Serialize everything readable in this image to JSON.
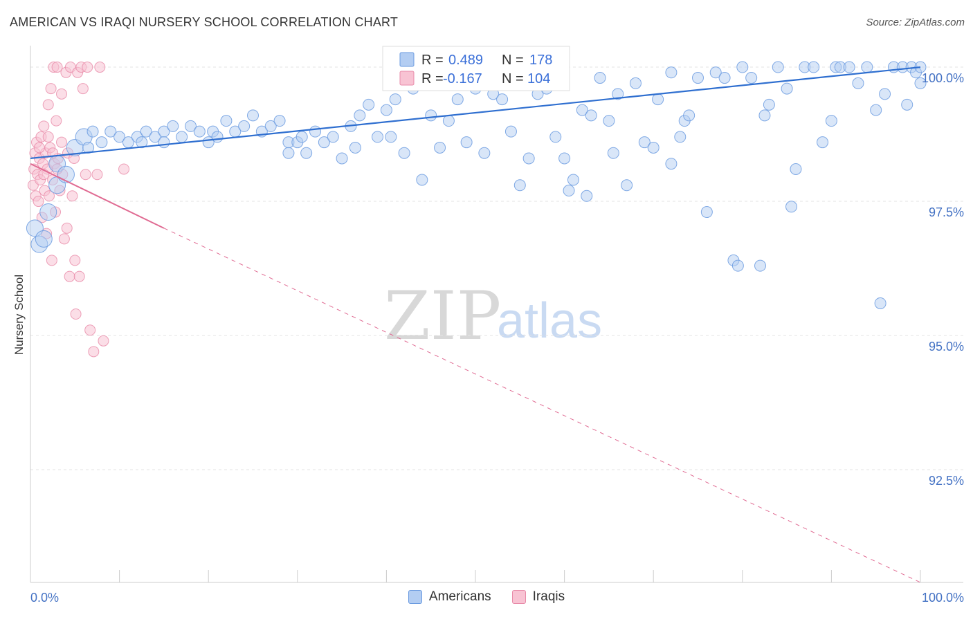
{
  "title": "AMERICAN VS IRAQI NURSERY SCHOOL CORRELATION CHART",
  "source": "Source: ZipAtlas.com",
  "watermark": {
    "zip": "ZIP",
    "atlas": "atlas"
  },
  "colors": {
    "blue": "#6b9be0",
    "blue_fill": "#b3cdf2",
    "blue_line": "#2f6fd0",
    "pink": "#e88aa8",
    "pink_fill": "#f8c3d3",
    "pink_line": "#e06a92",
    "tick": "#4472c4"
  },
  "legend": {
    "r_label": "R =",
    "n_label": "N =",
    "americans": {
      "r": "0.489",
      "n": "178"
    },
    "iraqis": {
      "r": "-0.167",
      "n": "104"
    }
  },
  "bottom_legend": {
    "americans": "Americans",
    "iraqis": "Iraqis"
  },
  "chart_data": {
    "type": "scatter",
    "title": "AMERICAN VS IRAQI NURSERY SCHOOL CORRELATION CHART",
    "xlabel": "",
    "ylabel": "Nursery School",
    "xlim": [
      0,
      100
    ],
    "ylim": [
      90.4,
      100.4
    ],
    "x_tick_labels": [
      "0.0%",
      "100.0%"
    ],
    "y_ticks": [
      92.5,
      95.0,
      97.5,
      100.0
    ],
    "y_tick_labels": [
      "92.5%",
      "95.0%",
      "97.5%",
      "100.0%"
    ],
    "grid": true,
    "series": [
      {
        "name": "Americans",
        "r": 0.489,
        "n": 178,
        "trend": {
          "x": [
            0,
            100
          ],
          "y": [
            98.3,
            100.0
          ]
        },
        "points": [
          [
            0.5,
            97.0
          ],
          [
            1,
            96.7
          ],
          [
            1.5,
            96.8
          ],
          [
            2,
            97.3
          ],
          [
            3,
            97.8
          ],
          [
            3,
            98.2
          ],
          [
            4,
            98.0
          ],
          [
            5,
            98.5
          ],
          [
            6,
            98.7
          ],
          [
            6.5,
            98.5
          ],
          [
            7,
            98.8
          ],
          [
            8,
            98.6
          ],
          [
            9,
            98.8
          ],
          [
            10,
            98.7
          ],
          [
            11,
            98.6
          ],
          [
            12,
            98.7
          ],
          [
            12.5,
            98.6
          ],
          [
            13,
            98.8
          ],
          [
            14,
            98.7
          ],
          [
            15,
            98.8
          ],
          [
            15,
            98.6
          ],
          [
            16,
            98.9
          ],
          [
            17,
            98.7
          ],
          [
            18,
            98.9
          ],
          [
            19,
            98.8
          ],
          [
            20,
            98.6
          ],
          [
            20.5,
            98.8
          ],
          [
            21,
            98.7
          ],
          [
            22,
            99.0
          ],
          [
            23,
            98.8
          ],
          [
            24,
            98.9
          ],
          [
            25,
            99.1
          ],
          [
            26,
            98.8
          ],
          [
            27,
            98.9
          ],
          [
            28,
            99.0
          ],
          [
            29,
            98.6
          ],
          [
            29,
            98.4
          ],
          [
            30,
            98.6
          ],
          [
            30.5,
            98.7
          ],
          [
            31,
            98.4
          ],
          [
            32,
            98.8
          ],
          [
            33,
            98.6
          ],
          [
            34,
            98.7
          ],
          [
            35,
            98.3
          ],
          [
            36,
            98.9
          ],
          [
            36.5,
            98.5
          ],
          [
            37,
            99.1
          ],
          [
            38,
            99.3
          ],
          [
            39,
            98.7
          ],
          [
            40,
            99.2
          ],
          [
            40.5,
            98.7
          ],
          [
            41,
            99.4
          ],
          [
            42,
            98.4
          ],
          [
            43,
            99.6
          ],
          [
            44,
            97.9
          ],
          [
            45,
            99.1
          ],
          [
            46,
            98.5
          ],
          [
            47,
            99.0
          ],
          [
            48,
            99.4
          ],
          [
            49,
            98.6
          ],
          [
            50,
            99.6
          ],
          [
            51,
            98.4
          ],
          [
            52,
            99.5
          ],
          [
            53,
            99.4
          ],
          [
            54,
            98.8
          ],
          [
            55,
            97.8
          ],
          [
            56,
            98.3
          ],
          [
            57,
            99.5
          ],
          [
            58,
            99.6
          ],
          [
            59,
            98.7
          ],
          [
            60,
            98.3
          ],
          [
            60.5,
            97.7
          ],
          [
            61,
            97.9
          ],
          [
            62,
            99.2
          ],
          [
            62.5,
            97.6
          ],
          [
            63,
            99.1
          ],
          [
            64,
            99.8
          ],
          [
            65,
            99.0
          ],
          [
            65.5,
            98.4
          ],
          [
            66,
            99.5
          ],
          [
            67,
            97.8
          ],
          [
            68,
            99.7
          ],
          [
            69,
            98.6
          ],
          [
            70,
            98.5
          ],
          [
            70.5,
            99.4
          ],
          [
            72,
            98.2
          ],
          [
            72,
            99.9
          ],
          [
            73,
            98.7
          ],
          [
            73.5,
            99.0
          ],
          [
            74,
            99.1
          ],
          [
            75,
            99.8
          ],
          [
            76,
            97.3
          ],
          [
            77,
            99.9
          ],
          [
            78,
            99.8
          ],
          [
            79,
            96.4
          ],
          [
            79.5,
            96.3
          ],
          [
            80,
            100.0
          ],
          [
            81,
            99.8
          ],
          [
            82,
            96.3
          ],
          [
            82.5,
            99.1
          ],
          [
            83,
            99.3
          ],
          [
            84,
            100.0
          ],
          [
            85,
            99.6
          ],
          [
            85.5,
            97.4
          ],
          [
            86,
            98.1
          ],
          [
            87,
            100.0
          ],
          [
            88,
            100.0
          ],
          [
            89,
            98.6
          ],
          [
            90,
            99.0
          ],
          [
            90.5,
            100.0
          ],
          [
            91,
            100.0
          ],
          [
            92,
            100.0
          ],
          [
            93,
            99.7
          ],
          [
            94,
            100.0
          ],
          [
            95,
            99.2
          ],
          [
            95.5,
            95.6
          ],
          [
            96,
            99.5
          ],
          [
            97,
            100.0
          ],
          [
            98,
            100.0
          ],
          [
            98.5,
            99.3
          ],
          [
            99,
            100.0
          ],
          [
            99.5,
            99.9
          ],
          [
            100,
            100.0
          ],
          [
            100,
            99.7
          ]
        ]
      },
      {
        "name": "Iraqis",
        "r": -0.167,
        "n": 104,
        "trend": {
          "x": [
            0,
            15
          ],
          "y": [
            98.2,
            97.0
          ],
          "dashed_extension": {
            "x": [
              15,
              100
            ],
            "y": [
              97.0,
              90.4
            ]
          }
        },
        "points": [
          [
            0.3,
            97.8
          ],
          [
            0.4,
            98.1
          ],
          [
            0.5,
            98.4
          ],
          [
            0.6,
            97.6
          ],
          [
            0.7,
            98.6
          ],
          [
            0.8,
            98.0
          ],
          [
            0.9,
            97.5
          ],
          [
            1.0,
            98.3
          ],
          [
            1.1,
            97.9
          ],
          [
            1.2,
            98.7
          ],
          [
            1.3,
            97.2
          ],
          [
            1.4,
            98.2
          ],
          [
            1.5,
            98.9
          ],
          [
            1.6,
            97.7
          ],
          [
            1.7,
            98.4
          ],
          [
            1.8,
            96.9
          ],
          [
            1.9,
            98.1
          ],
          [
            2.0,
            99.3
          ],
          [
            2.1,
            97.6
          ],
          [
            2.2,
            98.5
          ],
          [
            2.3,
            99.6
          ],
          [
            2.4,
            96.4
          ],
          [
            2.5,
            97.9
          ],
          [
            2.6,
            100.0
          ],
          [
            2.7,
            98.2
          ],
          [
            2.8,
            97.3
          ],
          [
            2.9,
            99.0
          ],
          [
            3.0,
            100.0
          ],
          [
            3.1,
            98.3
          ],
          [
            3.3,
            97.7
          ],
          [
            3.5,
            99.5
          ],
          [
            3.6,
            98.0
          ],
          [
            3.8,
            96.8
          ],
          [
            4.0,
            99.9
          ],
          [
            4.1,
            97.0
          ],
          [
            4.2,
            98.4
          ],
          [
            4.4,
            96.1
          ],
          [
            4.5,
            100.0
          ],
          [
            4.7,
            97.6
          ],
          [
            4.9,
            98.3
          ],
          [
            5.0,
            96.4
          ],
          [
            5.1,
            95.4
          ],
          [
            5.3,
            99.9
          ],
          [
            5.5,
            96.1
          ],
          [
            5.7,
            100.0
          ],
          [
            5.9,
            99.6
          ],
          [
            6.2,
            98.0
          ],
          [
            6.4,
            100.0
          ],
          [
            6.7,
            95.1
          ],
          [
            7.1,
            94.7
          ],
          [
            7.5,
            98.0
          ],
          [
            7.8,
            100.0
          ],
          [
            8.2,
            94.9
          ],
          [
            10.5,
            98.1
          ],
          [
            1.0,
            98.5
          ],
          [
            1.5,
            98.0
          ],
          [
            2.0,
            98.7
          ],
          [
            2.5,
            98.4
          ],
          [
            3.0,
            98.1
          ],
          [
            3.5,
            98.6
          ]
        ]
      }
    ]
  }
}
